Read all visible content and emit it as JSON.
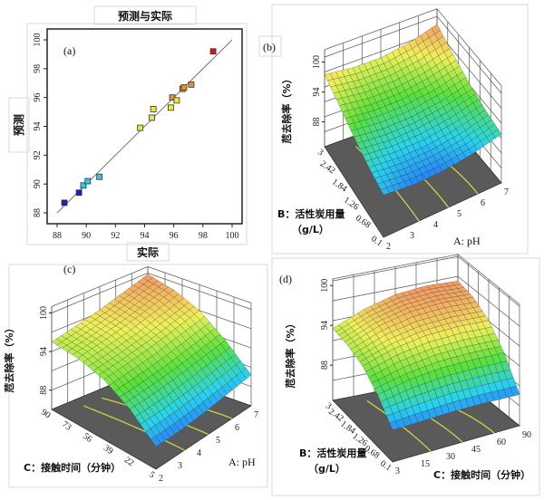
{
  "chart_data": [
    {
      "panel": "(a)",
      "type": "scatter",
      "title": "预测与实际",
      "xlabel": "实际",
      "ylabel": "预测",
      "xlim": [
        88,
        100
      ],
      "ylim": [
        88,
        100
      ],
      "xticks": [
        88,
        90,
        92,
        94,
        96,
        98,
        100
      ],
      "yticks": [
        88,
        90,
        92,
        94,
        96,
        98,
        100
      ],
      "reference_line": [
        [
          88,
          88
        ],
        [
          100,
          100
        ]
      ],
      "points": [
        {
          "x": 88.5,
          "y": 88.7
        },
        {
          "x": 89.5,
          "y": 89.4
        },
        {
          "x": 89.8,
          "y": 89.9
        },
        {
          "x": 90.1,
          "y": 90.2
        },
        {
          "x": 90.9,
          "y": 90.5
        },
        {
          "x": 93.7,
          "y": 93.9
        },
        {
          "x": 94.5,
          "y": 94.6
        },
        {
          "x": 94.6,
          "y": 95.2
        },
        {
          "x": 95.8,
          "y": 95.3
        },
        {
          "x": 95.9,
          "y": 96.0
        },
        {
          "x": 96.2,
          "y": 95.8
        },
        {
          "x": 96.6,
          "y": 96.6
        },
        {
          "x": 96.7,
          "y": 96.7
        },
        {
          "x": 97.2,
          "y": 96.9
        },
        {
          "x": 98.7,
          "y": 99.2
        }
      ],
      "color_scale": [
        "#1a20c8",
        "#30c8e8",
        "#40d040",
        "#e8e840",
        "#e89030",
        "#d01818"
      ]
    },
    {
      "panel": "(b)",
      "type": "surface",
      "xlabel": "A: pH",
      "ylabel": "B：活性炭用量",
      "ylabel_unit": "（g/L）",
      "zlabel": "苊去除率（%）",
      "xticks": [
        "2",
        "3",
        "4",
        "5",
        "6",
        "7"
      ],
      "yticks": [
        "0.1",
        "0.68",
        "1.26",
        "1.84",
        "2.42",
        "3"
      ],
      "zticks": [
        88,
        94,
        100
      ],
      "x_range": [
        2,
        7
      ],
      "y_range": [
        0.1,
        3
      ],
      "z_grid": [
        [
          91.5,
          90.8,
          90.8,
          91.5,
          92.8
        ],
        [
          92.5,
          91.8,
          91.8,
          92.5,
          93.8
        ],
        [
          94.0,
          93.3,
          93.3,
          94.0,
          95.3
        ],
        [
          95.8,
          95.0,
          95.0,
          95.8,
          97.2
        ],
        [
          97.5,
          96.8,
          96.8,
          97.7,
          99.4
        ]
      ]
    },
    {
      "panel": "(c)",
      "type": "surface",
      "xlabel": "A: pH",
      "ylabel": "C：接触时间（分钟）",
      "zlabel": "苊去除率（%）",
      "xticks": [
        "2",
        "3",
        "4",
        "5",
        "6",
        "7"
      ],
      "yticks": [
        "5",
        "22",
        "39",
        "56",
        "73",
        "90"
      ],
      "zticks": [
        88,
        94,
        100
      ],
      "x_range": [
        2,
        7
      ],
      "y_range": [
        5,
        90
      ],
      "z_grid": [
        [
          88.5,
          88.5,
          88.8,
          89.3,
          89.8
        ],
        [
          92.0,
          92.2,
          92.6,
          93.2,
          93.8
        ],
        [
          94.3,
          94.8,
          95.4,
          96.2,
          97.0
        ],
        [
          95.3,
          96.0,
          96.8,
          97.8,
          98.8
        ],
        [
          95.5,
          96.4,
          97.4,
          98.6,
          99.8
        ]
      ]
    },
    {
      "panel": "(d)",
      "type": "surface",
      "xlabel": "C：接触时间（分钟）",
      "ylabel": "B：活性炭用量",
      "ylabel_unit": "（g/L）",
      "zlabel": "苊去除率（%）",
      "xticks": [
        "3",
        "15",
        "30",
        "45",
        "60",
        "90"
      ],
      "yticks": [
        "0.1",
        "0.68",
        "1.26",
        "1.84",
        "2.42",
        "3"
      ],
      "zticks": [
        88,
        94,
        100
      ],
      "x_range": [
        3,
        90
      ],
      "y_range": [
        0.1,
        3
      ],
      "z_grid": [
        [
          87.5,
          87.6,
          87.7,
          87.6,
          87.4
        ],
        [
          90.5,
          91.5,
          92.0,
          92.0,
          91.8
        ],
        [
          92.5,
          94.0,
          94.8,
          95.0,
          94.8
        ],
        [
          93.3,
          95.2,
          96.3,
          96.6,
          96.4
        ],
        [
          93.5,
          95.5,
          96.8,
          97.2,
          97.0
        ]
      ]
    }
  ],
  "colors": {
    "floor": "#5a5a5a",
    "contour": "#c8e040",
    "design_point": "#b01010"
  }
}
